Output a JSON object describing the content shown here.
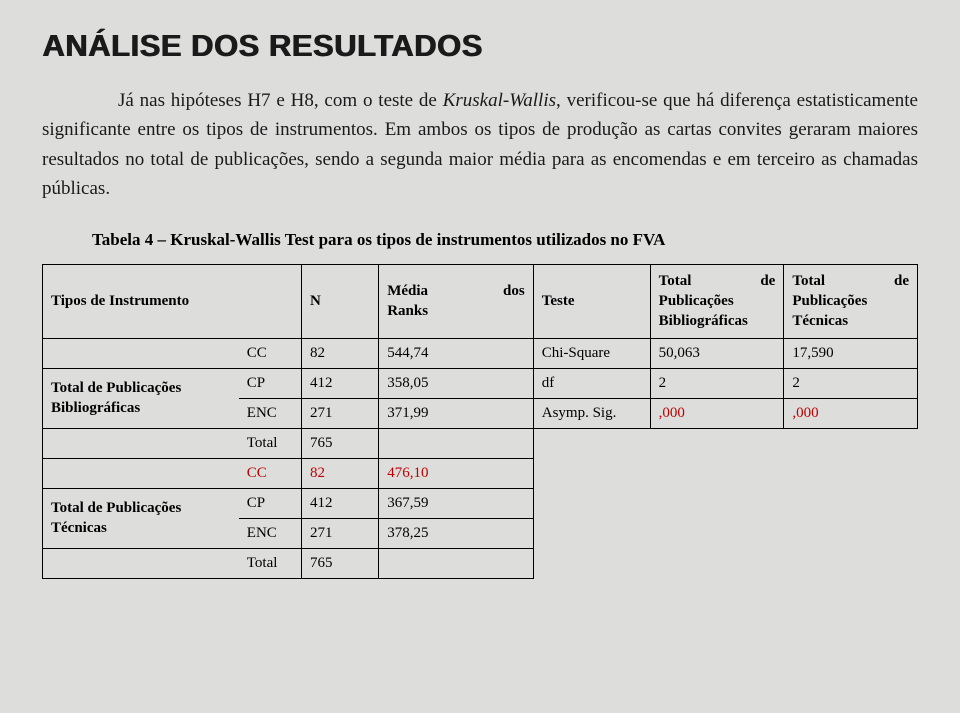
{
  "title": "ANÁLISE DOS RESULTADOS",
  "para_before": "Já nas hipóteses H7 e H8, com o teste de ",
  "para_kw": "Kruskal-Wallis",
  "para_after": ", verificou-se que há diferença estatisticamente significante entre os tipos de instrumentos. Em ambos os tipos de produção as cartas convites geraram maiores resultados no total de publicações, sendo a segunda maior média para as encomendas e em terceiro as chamadas públicas.",
  "caption": "Tabela 4 – Kruskal-Wallis Test para os tipos de instrumentos utilizados no FVA",
  "headers": {
    "tipos": "Tipos de Instrumento",
    "n": "N",
    "media": "Média",
    "dos": "dos",
    "ranks": "Ranks",
    "teste": "Teste",
    "total": "Total",
    "de": "de",
    "pub": "Publicações",
    "bibl": "Bibliográficas",
    "tec": "Técnicas"
  },
  "groups": [
    {
      "name_l1": "Total de Publicações",
      "name_l2": "Bibliográficas",
      "rows": [
        {
          "label": "CC",
          "n": "82",
          "rank": "544,74",
          "test": "Chi-Square",
          "v1": "50,063",
          "v2": "17,590",
          "red": false
        },
        {
          "label": "CP",
          "n": "412",
          "rank": "358,05",
          "test": "df",
          "v1": "2",
          "v2": "2",
          "red": false
        },
        {
          "label": "ENC",
          "n": "271",
          "rank": "371,99",
          "test": "Asymp. Sig.",
          "v1": ",000",
          "v2": ",000",
          "red": true
        },
        {
          "label": "Total",
          "n": "765",
          "rank": "",
          "test": "",
          "v1": "",
          "v2": "",
          "red": false
        }
      ]
    },
    {
      "name_l1": "Total de Publicações",
      "name_l2": "Técnicas",
      "rows": [
        {
          "label": "CC",
          "n": "82",
          "rank": "476,10",
          "red": true
        },
        {
          "label": "CP",
          "n": "412",
          "rank": "367,59",
          "red": false
        },
        {
          "label": "ENC",
          "n": "271",
          "rank": "378,25",
          "red": false
        },
        {
          "label": "Total",
          "n": "765",
          "rank": "",
          "red": false
        }
      ]
    }
  ]
}
